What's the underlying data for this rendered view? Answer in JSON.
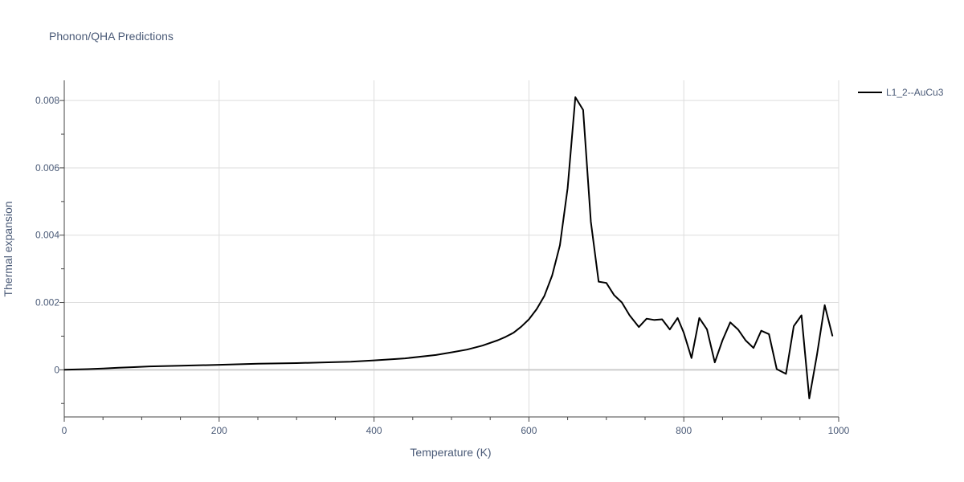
{
  "chart_data": {
    "type": "line",
    "title": "Phonon/QHA Predictions",
    "xlabel": "Temperature (K)",
    "ylabel": "Thermal expansion",
    "xlim": [
      0,
      1000
    ],
    "ylim": [
      -0.0014,
      0.0086
    ],
    "x_ticks": [
      0,
      200,
      400,
      600,
      800,
      1000
    ],
    "x_tick_labels": [
      "0",
      "200",
      "400",
      "600",
      "800",
      "1000"
    ],
    "y_ticks": [
      0,
      0.002,
      0.004,
      0.006,
      0.008
    ],
    "y_tick_labels": [
      "0",
      "0.002",
      "0.004",
      "0.006",
      "0.008"
    ],
    "grid": true,
    "legend_position": "top-right",
    "series": [
      {
        "name": "L1_2--AuCu3",
        "color": "#000000",
        "x": [
          0,
          30,
          50,
          70,
          90,
          110,
          150,
          200,
          250,
          300,
          370,
          400,
          440,
          480,
          500,
          520,
          540,
          560,
          570,
          580,
          590,
          600,
          610,
          620,
          630,
          640,
          650,
          660,
          670,
          680,
          690,
          700,
          710,
          720,
          730,
          742,
          752,
          762,
          772,
          782,
          792,
          800,
          810,
          820,
          830,
          840,
          850,
          860,
          870,
          880,
          890,
          900,
          910,
          920,
          932,
          942,
          952,
          962,
          972,
          982,
          992
        ],
        "y": [
          0,
          2e-05,
          4e-05,
          6e-05,
          8e-05,
          0.0001,
          0.00012,
          0.00015,
          0.00018,
          0.0002,
          0.00024,
          0.00028,
          0.00034,
          0.00044,
          0.00052,
          0.0006,
          0.00072,
          0.00088,
          0.00098,
          0.0011,
          0.00128,
          0.0015,
          0.0018,
          0.0022,
          0.0028,
          0.0037,
          0.0054,
          0.0081,
          0.00772,
          0.0044,
          0.00262,
          0.00258,
          0.00222,
          0.002,
          0.00162,
          0.00127,
          0.00152,
          0.00148,
          0.0015,
          0.0012,
          0.00154,
          0.0011,
          0.00035,
          0.00154,
          0.0012,
          0.00022,
          0.00088,
          0.00141,
          0.0012,
          0.00087,
          0.00065,
          0.00116,
          0.00106,
          2e-05,
          -0.00012,
          0.0013,
          0.00162,
          -0.00085,
          0.00045,
          0.00192,
          0.001
        ]
      }
    ]
  }
}
